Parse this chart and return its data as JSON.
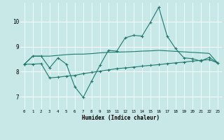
{
  "xlabel": "Humidex (Indice chaleur)",
  "xlim": [
    -0.5,
    23.5
  ],
  "ylim": [
    6.5,
    10.75
  ],
  "yticks": [
    7,
    8,
    9,
    10
  ],
  "xticks": [
    0,
    1,
    2,
    3,
    4,
    5,
    6,
    7,
    8,
    9,
    10,
    11,
    12,
    13,
    14,
    15,
    16,
    17,
    18,
    19,
    20,
    21,
    22,
    23
  ],
  "background_color": "#c8e8e8",
  "grid_color": "#ffffff",
  "line_color": "#1a7a6e",
  "line1": [
    8.3,
    8.62,
    8.62,
    8.15,
    8.55,
    8.3,
    7.4,
    6.97,
    7.62,
    8.25,
    8.85,
    8.82,
    9.35,
    9.45,
    9.42,
    9.97,
    10.57,
    9.42,
    8.92,
    8.55,
    8.52,
    8.42,
    8.57,
    8.35
  ],
  "line2": [
    8.3,
    8.62,
    8.62,
    8.62,
    8.65,
    8.68,
    8.7,
    8.7,
    8.72,
    8.75,
    8.77,
    8.78,
    8.79,
    8.8,
    8.82,
    8.83,
    8.85,
    8.83,
    8.81,
    8.79,
    8.77,
    8.75,
    8.73,
    8.35
  ],
  "line3": [
    8.3,
    8.3,
    8.32,
    7.75,
    7.78,
    7.82,
    7.85,
    7.92,
    7.97,
    8.02,
    8.07,
    8.12,
    8.15,
    8.18,
    8.22,
    8.25,
    8.28,
    8.32,
    8.35,
    8.38,
    8.42,
    8.45,
    8.48,
    8.35
  ]
}
